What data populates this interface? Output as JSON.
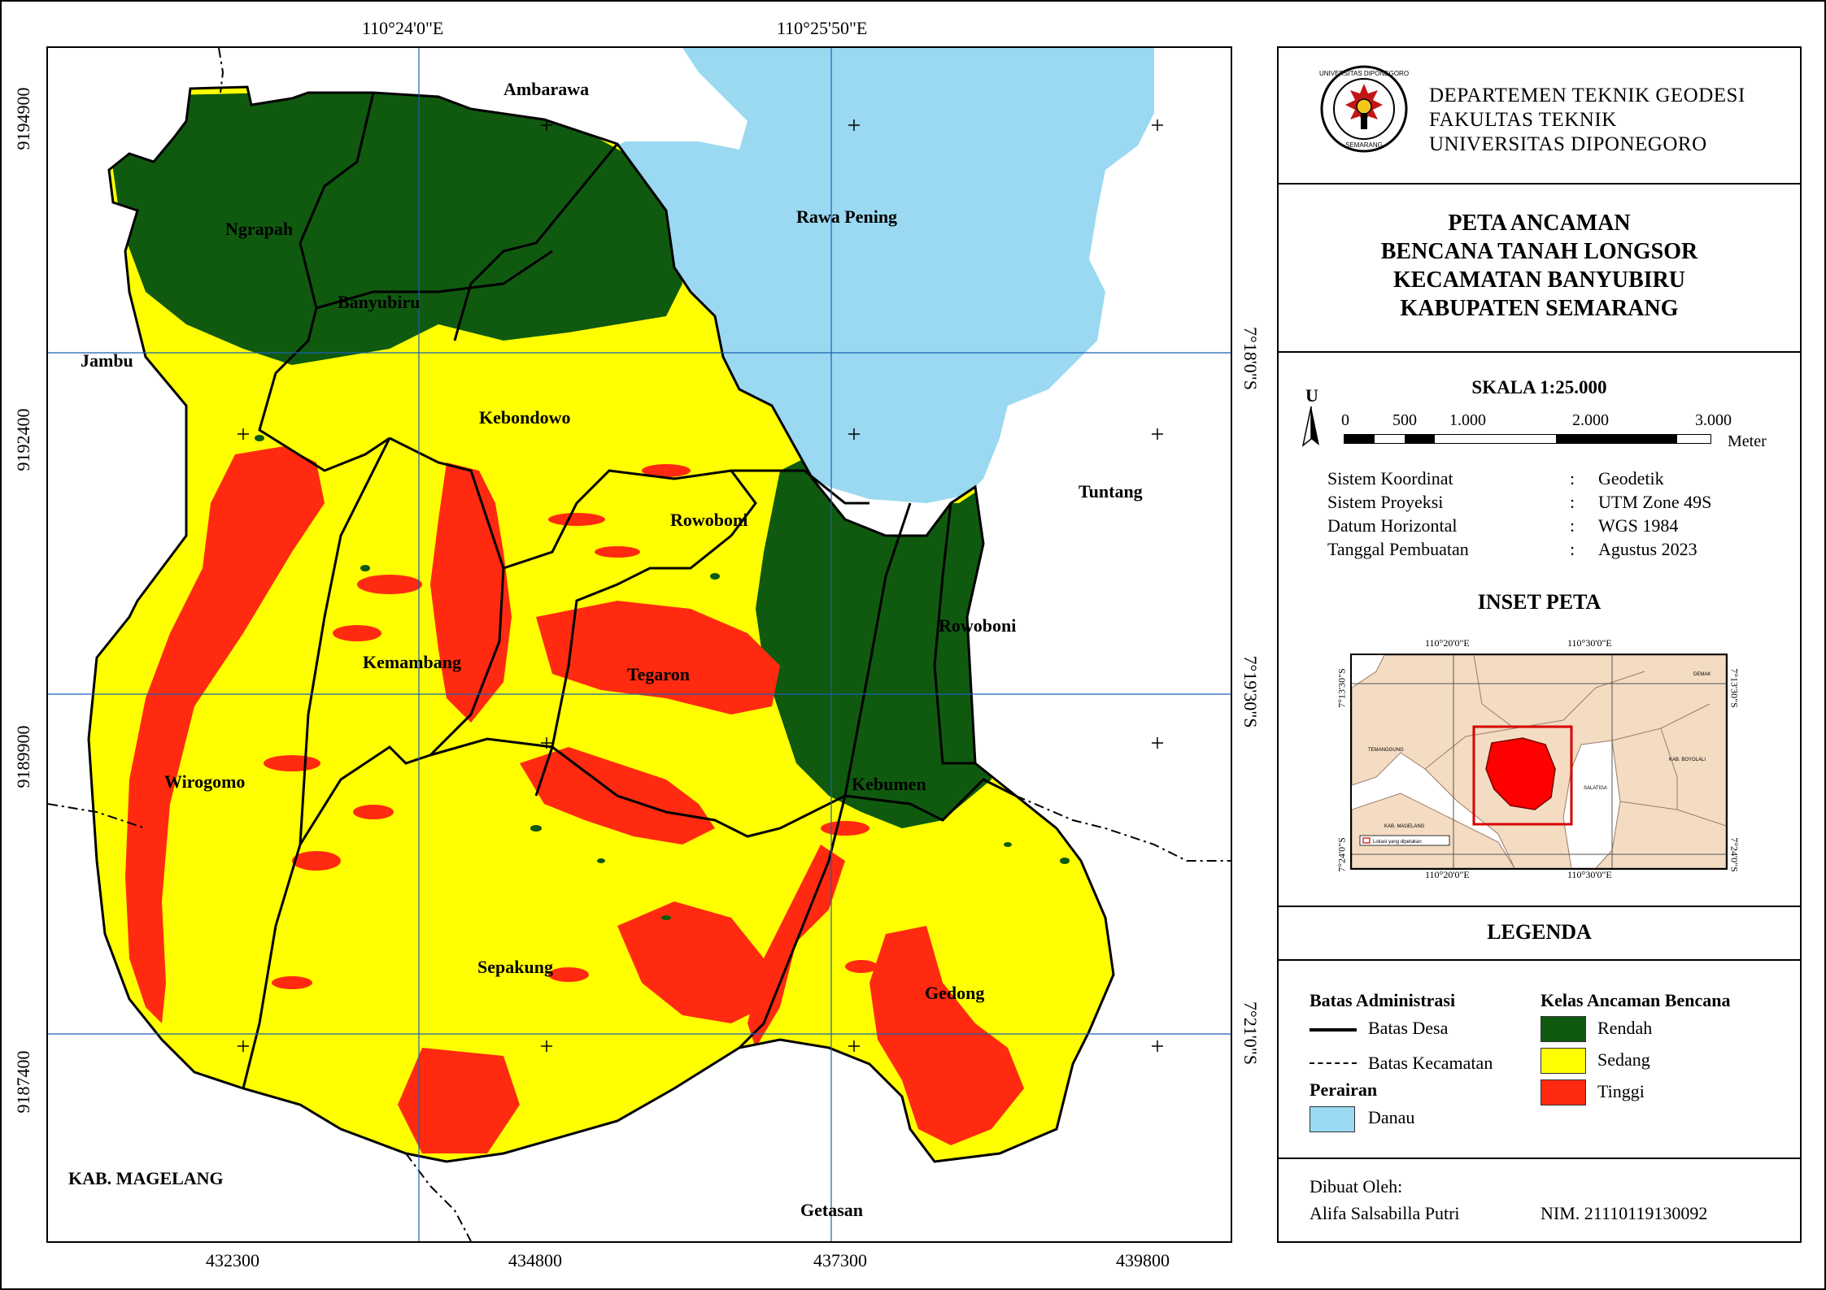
{
  "map": {
    "top_coords": [
      "110°24'0\"E",
      "110°25'50\"E"
    ],
    "bottom_coords": [
      "432300",
      "434800",
      "437300",
      "439800"
    ],
    "left_coords": [
      "9194900",
      "9192400",
      "9189900",
      "9187400"
    ],
    "right_coords": [
      "7°18'0\"S",
      "7°19'30\"S",
      "7°21'0\"S"
    ],
    "outside_labels": {
      "ambarawa": "Ambarawa",
      "jambu": "Jambu",
      "tuntang": "Tuntang",
      "magelang": "KAB. MAGELANG",
      "getasan": "Getasan"
    },
    "water_label": "Rawa Pening",
    "villages": {
      "ngrapah": "Ngrapah",
      "banyubiru": "Banyubiru",
      "kebondowo": "Kebondowo",
      "rowoboni_a": "Rowoboni",
      "rowoboni_b": "Rowoboni",
      "kemambang": "Kemambang",
      "tegaron": "Tegaron",
      "wirogomo": "Wirogomo",
      "kebumen": "Kebumen",
      "sepakung": "Sepakung",
      "gedong": "Gedong"
    }
  },
  "colors": {
    "rendah": "#0f5a0f",
    "sedang": "#ffff00",
    "tinggi": "#ff2a10",
    "danau": "#9ad9f1",
    "inset_land": "#f3dcc2",
    "inset_target": "#ff0000"
  },
  "panel": {
    "institution": [
      "DEPARTEMEN TEKNIK GEODESI",
      "FAKULTAS TEKNIK",
      "UNIVERSITAS DIPONEGORO"
    ],
    "logo_text": [
      "UNIVERSITAS DIPONEGORO",
      "SEMARANG"
    ],
    "title": [
      "PETA ANCAMAN",
      "BENCANA TANAH LONGSOR",
      "KECAMATAN BANYUBIRU",
      "KABUPATEN SEMARANG"
    ],
    "scale": {
      "heading": "SKALA  1:25.000",
      "north": "U",
      "ticks": [
        "0",
        "500",
        "1.000",
        "2.000",
        "3.000"
      ],
      "unit": "Meter"
    },
    "info": [
      {
        "label": "Sistem Koordinat",
        "sep": ":",
        "value": "Geodetik"
      },
      {
        "label": "Sistem Proyeksi",
        "sep": ":",
        "value": "UTM Zone 49S"
      },
      {
        "label": "Datum Horizontal",
        "sep": ":",
        "value": "WGS 1984"
      },
      {
        "label": "Tanggal Pembuatan",
        "sep": ":",
        "value": "Agustus 2023"
      }
    ],
    "inset": {
      "heading": "INSET PETA",
      "top_coords": [
        "110°20'0\"E",
        "110°30'0\"E"
      ],
      "bottom_coords": [
        "110°20'0\"E",
        "110°30'0\"E"
      ],
      "left_coords": [
        "7°13'30\"S",
        "7°24'0\"S"
      ],
      "right_coords": [
        "7°13'30\"S",
        "7°24'0\"S"
      ],
      "legend_text": "Lokasi yang dipetakan",
      "place_labels": [
        "TEMANGGUNG",
        "KAB. MAGELANG",
        "SALATIGA",
        "KAB. BOYOLALI",
        "DEMAK"
      ]
    },
    "legend": {
      "heading": "LEGENDA",
      "admin_heading": "Batas Administrasi",
      "batas_desa": "Batas Desa",
      "batas_kecamatan": "Batas Kecamatan",
      "perairan_heading": "Perairan",
      "danau": "Danau",
      "kelas_heading": "Kelas Ancaman Bencana",
      "rendah": "Rendah",
      "sedang": "Sedang",
      "tinggi": "Tinggi"
    },
    "credit": {
      "made_by_label": "Dibuat Oleh:",
      "name": "Alifa Salsabilla Putri",
      "nim": "NIM. 21110119130092"
    }
  }
}
